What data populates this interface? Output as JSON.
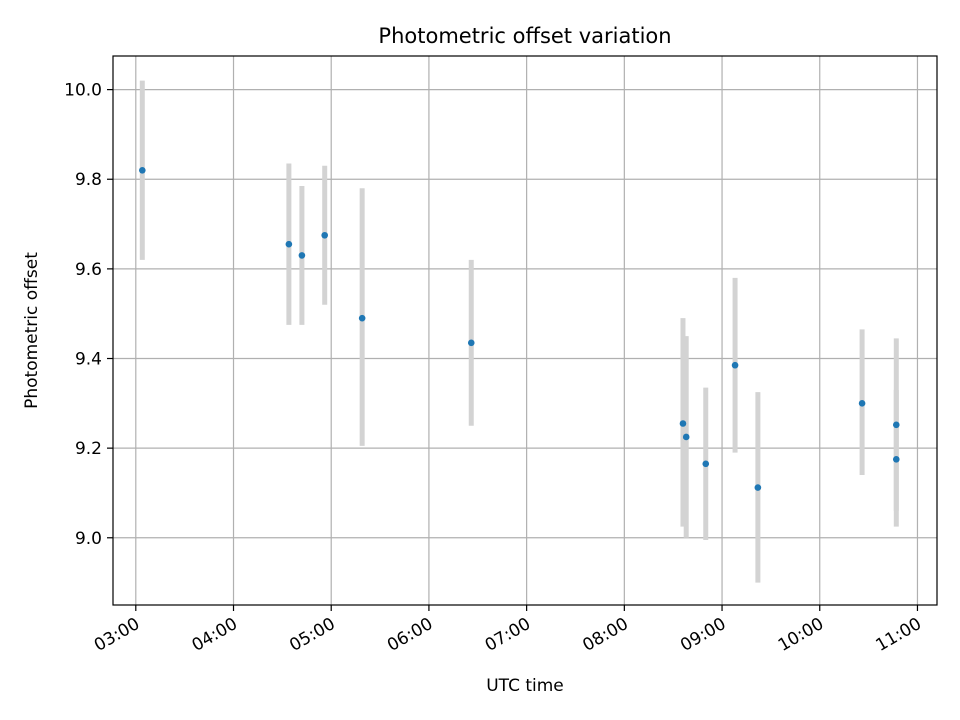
{
  "chart_data": {
    "type": "scatter",
    "title": "Photometric offset variation",
    "xlabel": "UTC time",
    "ylabel": "Photometric offset",
    "xlim": [
      "02:46",
      "11:12"
    ],
    "ylim": [
      8.85,
      10.075
    ],
    "grid": true,
    "x_ticks": [
      "03:00",
      "04:00",
      "05:00",
      "06:00",
      "07:00",
      "08:00",
      "09:00",
      "10:00",
      "11:00"
    ],
    "y_ticks": [
      "9.0",
      "9.2",
      "9.4",
      "9.6",
      "9.8",
      "10.0"
    ],
    "series": [
      {
        "marker_color": "#1f77b4",
        "errorbar_color": "#d3d3d3",
        "points": [
          {
            "x": "03:04",
            "y": 9.82,
            "y_low": 9.62,
            "y_high": 10.02
          },
          {
            "x": "04:34",
            "y": 9.655,
            "y_low": 9.475,
            "y_high": 9.835
          },
          {
            "x": "04:42",
            "y": 9.63,
            "y_low": 9.475,
            "y_high": 9.785
          },
          {
            "x": "04:56",
            "y": 9.675,
            "y_low": 9.52,
            "y_high": 9.83
          },
          {
            "x": "05:19",
            "y": 9.49,
            "y_low": 9.205,
            "y_high": 9.78
          },
          {
            "x": "06:26",
            "y": 9.435,
            "y_low": 9.25,
            "y_high": 9.62
          },
          {
            "x": "08:36",
            "y": 9.255,
            "y_low": 9.025,
            "y_high": 9.49
          },
          {
            "x": "08:38",
            "y": 9.225,
            "y_low": 9.0,
            "y_high": 9.45
          },
          {
            "x": "08:50",
            "y": 9.165,
            "y_low": 8.995,
            "y_high": 9.335
          },
          {
            "x": "09:08",
            "y": 9.385,
            "y_low": 9.19,
            "y_high": 9.58
          },
          {
            "x": "09:22",
            "y": 9.112,
            "y_low": 8.9,
            "y_high": 9.325
          },
          {
            "x": "10:26",
            "y": 9.3,
            "y_low": 9.14,
            "y_high": 9.465
          },
          {
            "x": "10:47",
            "y": 9.252,
            "y_low": 9.06,
            "y_high": 9.445
          },
          {
            "x": "10:47",
            "y": 9.175,
            "y_low": 9.025,
            "y_high": 9.33
          }
        ]
      }
    ]
  }
}
